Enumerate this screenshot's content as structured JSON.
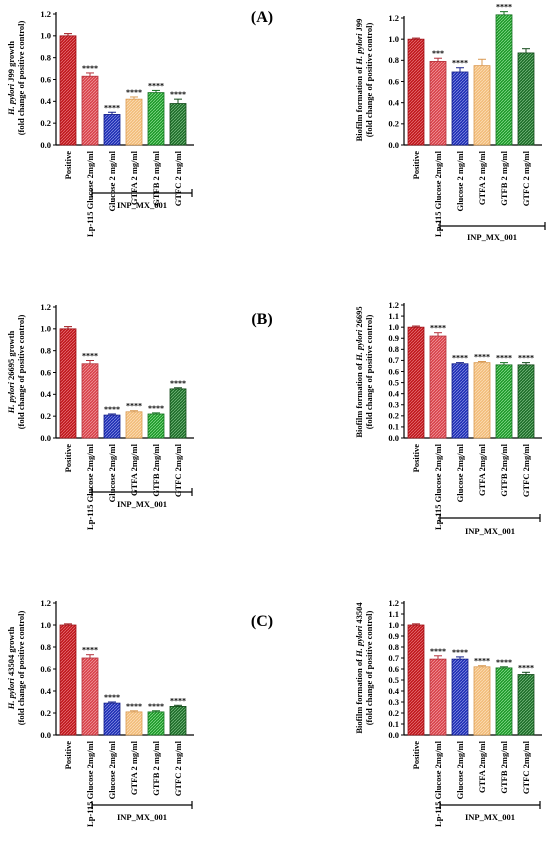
{
  "panel_labels": [
    "(A)",
    "(B)",
    "(C)"
  ],
  "colors": {
    "Positive": "#c0181d",
    "Lp-115 Glucose 2mg/ml": "#d8434b",
    "Glucose": "#1f2fb5",
    "GTFA": "#f2bd7b",
    "GTFB": "#1f9a2a",
    "GTFC": "#1f6e2a"
  },
  "chart_data": [
    {
      "type": "bar",
      "ylabel_lines": [
        "H. pylori J99 growth",
        "(fold change of positive control)"
      ],
      "ylabel_italic": "H. pylori",
      "ylim": [
        0,
        1.2
      ],
      "yticks": [
        "0.0",
        "0.2",
        "0.4",
        "0.6",
        "0.8",
        "1.0",
        "1.2"
      ],
      "categories": [
        "Positive",
        "Lp-115 Glucose 2mg/ml",
        "Glucose 2 mg/ml",
        "GTFA 2 mg/ml",
        "GTFB 2 mg/ml",
        "GTFC 2 mg/ml"
      ],
      "values": [
        1.0,
        0.63,
        0.28,
        0.42,
        0.48,
        0.38
      ],
      "errors": [
        0.02,
        0.03,
        0.02,
        0.02,
        0.02,
        0.04
      ],
      "significance": [
        "",
        "****",
        "****",
        "****",
        "****",
        "****"
      ],
      "bracket_label": "INP_MX_001"
    },
    {
      "type": "bar",
      "ylabel_lines": [
        "Biofilm formation of H. pylori J99",
        "(fold change of positive control)"
      ],
      "ylabel_italic": "H. pylori",
      "ylim": [
        0,
        1.2
      ],
      "yticks": [
        "0.0",
        "0.2",
        "0.4",
        "0.6",
        "0.8",
        "1.0",
        "1.2"
      ],
      "categories": [
        "Positive",
        "Lp-115 Glucose 2mg/ml",
        "Glucose 2 mg/ml",
        "GTFA 2 mg/ml",
        "GTFB 2 mg/ml",
        "GTFC 2 mg/ml"
      ],
      "values": [
        1.0,
        0.79,
        0.69,
        0.75,
        1.23,
        0.87
      ],
      "errors": [
        0.01,
        0.03,
        0.04,
        0.06,
        0.03,
        0.04
      ],
      "significance": [
        "",
        "***",
        "****",
        "",
        "****",
        ""
      ],
      "bracket_label": "INP_MX_001"
    },
    {
      "type": "bar",
      "ylabel_lines": [
        "H. pylori 26695 growth",
        "(fold change of positive control)"
      ],
      "ylabel_italic": "H. pylori",
      "ylim": [
        0,
        1.2
      ],
      "yticks": [
        "0.0",
        "0.2",
        "0.4",
        "0.6",
        "0.8",
        "1.0",
        "1.2"
      ],
      "categories": [
        "Positive",
        "Lp-115 Glucose 2mg/ml",
        "Glucose 2mg/ml",
        "GTFA 2mg/ml",
        "GTFB 2mg/ml",
        "GTFC 2mg/ml"
      ],
      "values": [
        1.0,
        0.68,
        0.21,
        0.24,
        0.22,
        0.45
      ],
      "errors": [
        0.02,
        0.03,
        0.01,
        0.01,
        0.01,
        0.01
      ],
      "significance": [
        "",
        "****",
        "****",
        "****",
        "****",
        "****"
      ],
      "bracket_label": "INP_MX_001"
    },
    {
      "type": "bar",
      "ylabel_lines": [
        "Biofilm formation of H. pylori 26695",
        "(fold change of positive control)"
      ],
      "ylabel_italic": "H. pylori",
      "ylim": [
        0,
        1.2
      ],
      "yticks": [
        "0.0",
        "0.1",
        "0.2",
        "0.3",
        "0.4",
        "0.5",
        "0.6",
        "0.7",
        "0.8",
        "0.9",
        "1.0",
        "1.1",
        "1.2"
      ],
      "categories": [
        "Positive",
        "Lp-115 Glucose 2mg/ml",
        "Glucose 2mg/ml",
        "GTFA 2mg/ml",
        "GTFB 2mg/ml",
        "GTFC 2mg/ml"
      ],
      "values": [
        1.0,
        0.92,
        0.67,
        0.68,
        0.66,
        0.66
      ],
      "errors": [
        0.01,
        0.03,
        0.01,
        0.01,
        0.02,
        0.02
      ],
      "significance": [
        "",
        "****",
        "****",
        "****",
        "****",
        "****"
      ],
      "bracket_label": "INP_MX_001"
    },
    {
      "type": "bar",
      "ylabel_lines": [
        "H. pylori 43504 growth",
        "(fold change of positive control)"
      ],
      "ylabel_italic": "H. pylori",
      "ylim": [
        0,
        1.2
      ],
      "yticks": [
        "0.0",
        "0.2",
        "0.4",
        "0.6",
        "0.8",
        "1.0",
        "1.2"
      ],
      "categories": [
        "Positive",
        "Lp-115 Glucose 2mg/ml",
        "Glucose 2mg/ml",
        "GTFA 2 mg/ml",
        "GTFB 2 mg/ml",
        "GTFC 2 mg/ml"
      ],
      "values": [
        1.0,
        0.7,
        0.29,
        0.21,
        0.21,
        0.26
      ],
      "errors": [
        0.01,
        0.03,
        0.01,
        0.01,
        0.01,
        0.01
      ],
      "significance": [
        "",
        "****",
        "****",
        "****",
        "****",
        "****"
      ],
      "bracket_label": "INP_MX_001"
    },
    {
      "type": "bar",
      "ylabel_lines": [
        "Biofilm formation of H. pylori 43504",
        "(fold change of positive control)"
      ],
      "ylabel_italic": "H. pylori",
      "ylim": [
        0,
        1.2
      ],
      "yticks": [
        "0.0",
        "0.1",
        "0.2",
        "0.3",
        "0.4",
        "0.5",
        "0.6",
        "0.7",
        "0.8",
        "0.9",
        "1.0",
        "1.1",
        "1.2"
      ],
      "categories": [
        "Positive",
        "Lp-115 Glucose 2mg/ml",
        "Glucose 2mg/ml",
        "GTFA 2mg/ml",
        "GTFB 2mg/ml",
        "GTFC 2mg/ml"
      ],
      "values": [
        1.0,
        0.69,
        0.69,
        0.62,
        0.61,
        0.55
      ],
      "errors": [
        0.01,
        0.03,
        0.02,
        0.01,
        0.01,
        0.02
      ],
      "significance": [
        "",
        "****",
        "****",
        "****",
        "****",
        "****"
      ],
      "bracket_label": "INP_MX_001"
    }
  ]
}
